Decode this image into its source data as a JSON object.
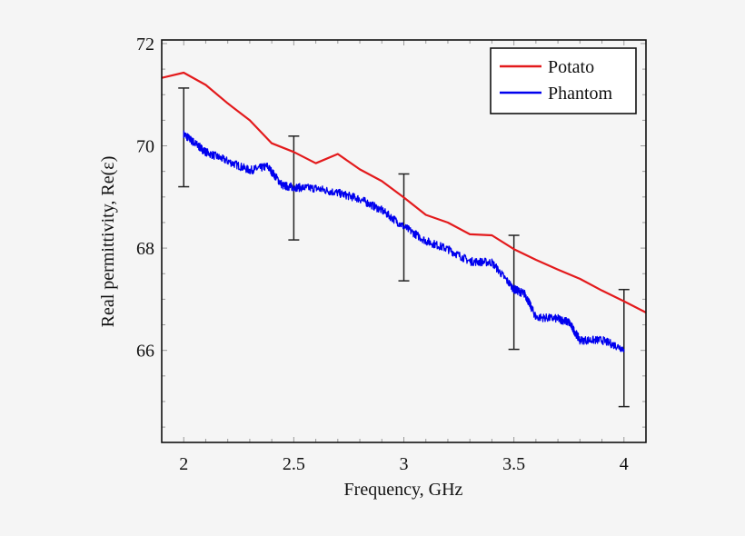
{
  "chart_data": {
    "type": "line",
    "title": "",
    "xlabel": "Frequency, GHz",
    "ylabel": "Real permittivity, Re(ε)",
    "xlim": [
      1.9,
      4.1
    ],
    "ylim": [
      64.2,
      72.07
    ],
    "xticks": [
      2,
      2.5,
      3,
      3.5,
      4
    ],
    "xtick_labels": [
      "2",
      "2.5",
      "3",
      "3.5",
      "4"
    ],
    "yticks": [
      66,
      68,
      70,
      72
    ],
    "ytick_labels": [
      "66",
      "68",
      "70",
      "72"
    ],
    "grid": false,
    "legend_position": "top-right",
    "series": [
      {
        "name": "Potato",
        "color": "#e31a1c",
        "x": [
          1.9,
          2.0,
          2.1,
          2.2,
          2.3,
          2.4,
          2.5,
          2.6,
          2.7,
          2.8,
          2.9,
          3.0,
          3.1,
          3.2,
          3.3,
          3.4,
          3.5,
          3.6,
          3.7,
          3.8,
          3.9,
          4.0,
          4.1
        ],
        "y": [
          71.33,
          71.43,
          71.19,
          70.83,
          70.5,
          70.05,
          69.88,
          69.66,
          69.84,
          69.54,
          69.31,
          68.99,
          68.65,
          68.5,
          68.27,
          68.25,
          67.98,
          67.77,
          67.58,
          67.4,
          67.17,
          66.96,
          66.74
        ]
      },
      {
        "name": "Phantom",
        "color": "#0000ee",
        "x": [
          2.0,
          2.05,
          2.1,
          2.2,
          2.3,
          2.38,
          2.45,
          2.5,
          2.6,
          2.7,
          2.8,
          2.9,
          3.0,
          3.1,
          3.2,
          3.3,
          3.4,
          3.5,
          3.55,
          3.6,
          3.7,
          3.75,
          3.8,
          3.9,
          4.0
        ],
        "y": [
          70.23,
          70.05,
          69.88,
          69.7,
          69.52,
          69.6,
          69.22,
          69.19,
          69.17,
          69.08,
          68.96,
          68.74,
          68.42,
          68.14,
          67.98,
          67.74,
          67.72,
          67.2,
          67.1,
          66.65,
          66.62,
          66.55,
          66.2,
          66.2,
          66.03
        ]
      }
    ],
    "error_bars": {
      "color": "#222222",
      "x": [
        2.0,
        2.5,
        3.0,
        3.5,
        4.0
      ],
      "low": [
        69.2,
        68.16,
        67.36,
        66.02,
        64.9
      ],
      "high": [
        71.13,
        70.19,
        69.45,
        68.25,
        67.19
      ]
    }
  }
}
